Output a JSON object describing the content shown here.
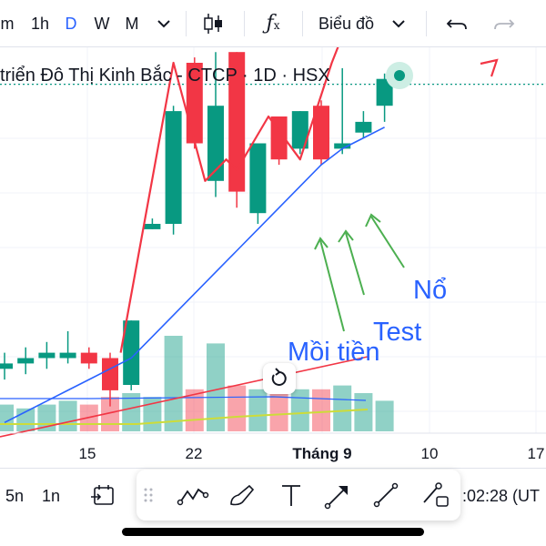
{
  "toolbar": {
    "interval_partial": "m",
    "interval_1h": "1h",
    "interval_d": "D",
    "interval_w": "W",
    "interval_m": "M",
    "chart_type_label": "Biểu đồ",
    "active_color": "#2962ff"
  },
  "legend": {
    "symbol_text": "triển Đô Thị Kinh Bắc - CTCP · 1D · HSX"
  },
  "annotations": {
    "moi_tien": "Mồi tiền",
    "test": "Test",
    "no": "Nổ"
  },
  "x_axis": {
    "ticks": [
      "15",
      "22",
      "Tháng 9",
      "10",
      "17"
    ]
  },
  "bottom_bar": {
    "range_5n": "5n",
    "range_1n": "1n",
    "time_text": ":02:28 (UT"
  },
  "colors": {
    "up": "#089981",
    "down": "#f23645",
    "ma_line": "#2962ff",
    "drawing_red": "#f23645",
    "drawing_green": "#4caf50",
    "annotation_blue": "#2962ff"
  },
  "chart_data": {
    "type": "candlestick",
    "title": "triển Đô Thị Kinh Bắc - CTCP · 1D · HSX",
    "x_ticks": [
      "15",
      "22",
      "Tháng 9",
      "10",
      "17"
    ],
    "candles": [
      {
        "dir": "up",
        "o": 25.65,
        "c": 25.7,
        "h": 25.8,
        "l": 25.55
      },
      {
        "dir": "up",
        "o": 25.7,
        "c": 25.75,
        "h": 25.85,
        "l": 25.6
      },
      {
        "dir": "up",
        "o": 25.75,
        "c": 25.8,
        "h": 25.9,
        "l": 25.65
      },
      {
        "dir": "up",
        "o": 25.75,
        "c": 25.8,
        "h": 26.0,
        "l": 25.7
      },
      {
        "dir": "down",
        "o": 25.8,
        "c": 25.7,
        "h": 25.85,
        "l": 25.65
      },
      {
        "dir": "down",
        "o": 25.75,
        "c": 25.45,
        "h": 25.8,
        "l": 25.3
      },
      {
        "dir": "up",
        "o": 25.5,
        "c": 26.1,
        "h": 26.1,
        "l": 25.45
      },
      {
        "dir": "up",
        "o": 26.95,
        "c": 27.0,
        "h": 27.05,
        "l": 26.95
      },
      {
        "dir": "up",
        "o": 27.0,
        "c": 28.05,
        "h": 28.1,
        "l": 26.9
      },
      {
        "dir": "down",
        "o": 28.5,
        "c": 27.75,
        "h": 28.55,
        "l": 27.7
      },
      {
        "dir": "up",
        "o": 27.4,
        "c": 28.1,
        "h": 28.6,
        "l": 27.25
      },
      {
        "dir": "down",
        "o": 28.6,
        "c": 27.3,
        "h": 28.6,
        "l": 27.15
      },
      {
        "dir": "up",
        "o": 27.1,
        "c": 27.75,
        "h": 27.75,
        "l": 27.0
      },
      {
        "dir": "down",
        "o": 28.0,
        "c": 27.6,
        "h": 28.0,
        "l": 27.55
      },
      {
        "dir": "up",
        "o": 27.7,
        "c": 28.05,
        "h": 28.05,
        "l": 27.65
      },
      {
        "dir": "down",
        "o": 28.1,
        "c": 27.6,
        "h": 28.15,
        "l": 27.55
      },
      {
        "dir": "up",
        "o": 27.7,
        "c": 27.75,
        "h": 28.45,
        "l": 27.65
      },
      {
        "dir": "up",
        "o": 27.85,
        "c": 27.95,
        "h": 28.05,
        "l": 27.8
      },
      {
        "dir": "up",
        "o": 28.1,
        "c": 28.35,
        "h": 28.4,
        "l": 27.95
      }
    ],
    "volume": [
      0.35,
      0.3,
      0.35,
      0.4,
      0.35,
      0.45,
      0.5,
      0.45,
      1.25,
      0.55,
      1.15,
      0.6,
      0.55,
      0.55,
      0.55,
      0.55,
      0.6,
      0.5,
      0.4
    ],
    "ma": [
      25.15,
      25.25,
      25.35,
      25.45,
      25.55,
      25.65,
      25.75,
      25.95,
      26.15,
      26.35,
      26.55,
      26.75,
      26.95,
      27.15,
      27.35,
      27.55,
      27.7,
      27.8,
      27.9
    ],
    "horizontal_line": 28.3,
    "annotation_path": [
      [
        5.5,
        25.8
      ],
      [
        8.0,
        28.5
      ],
      [
        9.5,
        27.4
      ],
      [
        10.5,
        27.6
      ],
      [
        11.0,
        27.5
      ],
      [
        12.5,
        28.0
      ],
      [
        14.0,
        27.6
      ],
      [
        15.5,
        28.5
      ],
      [
        17.5,
        29.5
      ],
      [
        18.5,
        28.9
      ],
      [
        21.0,
        30.8
      ]
    ]
  }
}
